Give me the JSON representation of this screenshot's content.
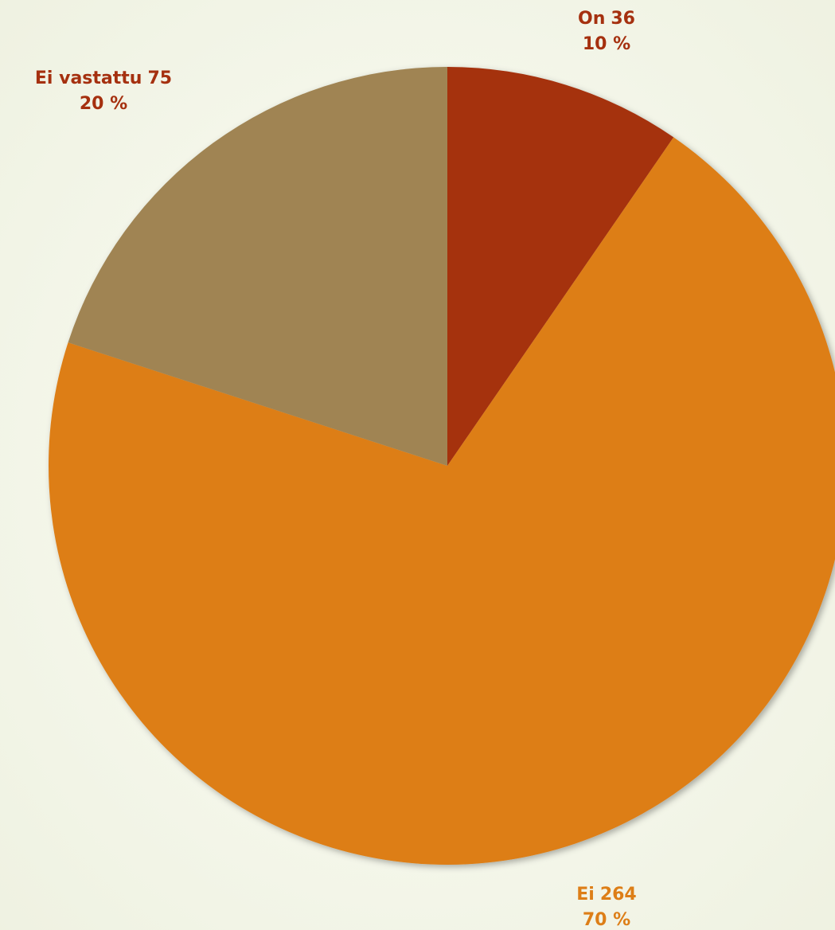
{
  "chart_data": {
    "type": "pie",
    "categories": [
      "On",
      "Ei",
      "Ei vastattu"
    ],
    "values": [
      36,
      264,
      75
    ],
    "percent_labels": [
      "10 %",
      "70 %",
      "20 %"
    ],
    "colors": [
      "#a5300f",
      "#dd7e17",
      "#a08452"
    ],
    "label_colors": [
      "#a5300f",
      "#dd7e17",
      "#a5300f"
    ]
  }
}
